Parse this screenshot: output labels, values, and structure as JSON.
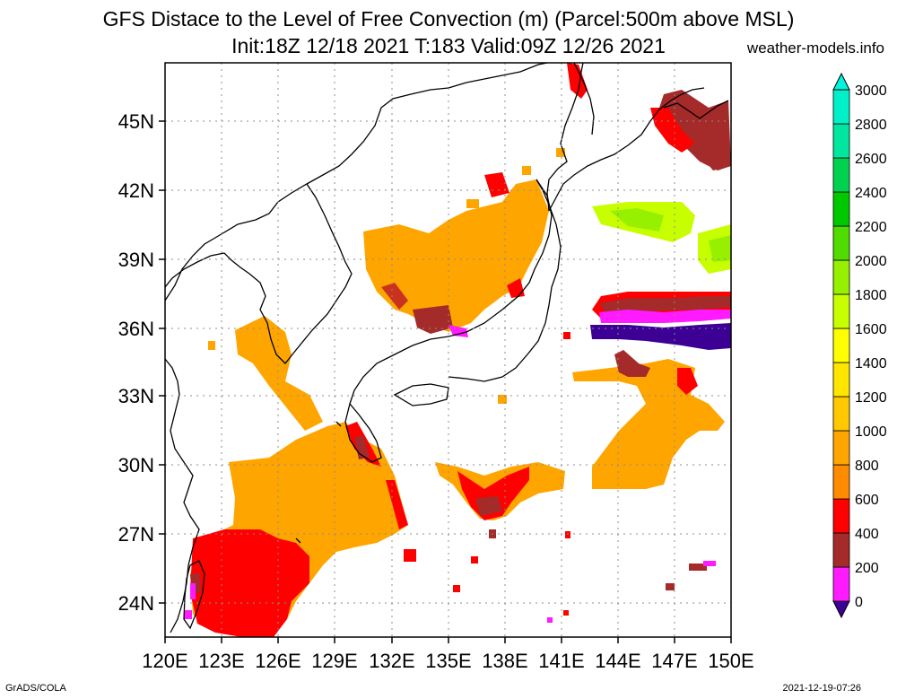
{
  "title_line1": "GFS Distace to the Level of Free Convection (m) (Parcel:500m above MSL)",
  "title_line2": "Init:18Z 12/18 2021 T:183 Valid:09Z 12/26 2021",
  "source": "weather-models.info",
  "footer_left": "GrADS/COLA",
  "footer_right": "2021-12-19-07:26",
  "map": {
    "lon_range": [
      120,
      150
    ],
    "lat_range": [
      22.5,
      47.5
    ],
    "lon_ticks": [
      "120E",
      "123E",
      "126E",
      "129E",
      "132E",
      "135E",
      "138E",
      "141E",
      "144E",
      "147E",
      "150E"
    ],
    "lat_ticks": [
      "24N",
      "27N",
      "30N",
      "33N",
      "36N",
      "39N",
      "42N",
      "45N"
    ],
    "grid": true
  },
  "colorbar": {
    "labels": [
      "0",
      "200",
      "400",
      "600",
      "800",
      "1000",
      "1200",
      "1400",
      "1600",
      "1800",
      "2000",
      "2200",
      "2400",
      "2600",
      "2800",
      "3000"
    ],
    "colors": [
      "#3c0095",
      "#ff1aff",
      "#a52a2a",
      "#ff0000",
      "#ff8c00",
      "#ffa500",
      "#ffc800",
      "#ffe600",
      "#ffff00",
      "#c8ff00",
      "#96f000",
      "#50dc00",
      "#00c800",
      "#00d250",
      "#00e6a0",
      "#00f0c8",
      "#00f5dc"
    ]
  }
}
